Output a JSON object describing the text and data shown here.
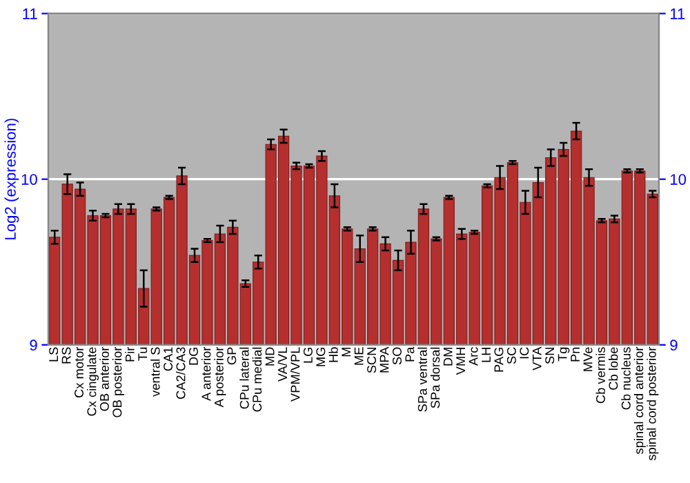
{
  "chart_data": {
    "type": "bar",
    "ylabel": "Log2 (expression)",
    "categories": [
      "LS",
      "RS",
      "Cx motor",
      "Cx cingulate",
      "OB anterior",
      "OB posterior",
      "Pir",
      "Tu",
      "ventral S",
      "CA1",
      "CA2/CA3",
      "DG",
      "A anterior",
      "A posterior",
      "GP",
      "CPu lateral",
      "CPu medial",
      "MD",
      "VA/VL",
      "VPM/VPL",
      "LG",
      "MG",
      "Hb",
      "M",
      "ME",
      "SCN",
      "MPA",
      "SO",
      "Pa",
      "SPa ventral",
      "SPa dorsal",
      "DM",
      "VMH",
      "Arc",
      "LH",
      "PAG",
      "SC",
      "IC",
      "VTA",
      "SN",
      "Tg",
      "Pn",
      "MVe",
      "Cb vermis",
      "Cb lobe",
      "Cb nucleus",
      "spinal cord anterior",
      "spinal cord posterior"
    ],
    "values": [
      9.65,
      9.97,
      9.94,
      9.78,
      9.78,
      9.82,
      9.82,
      9.34,
      9.82,
      9.89,
      10.02,
      9.54,
      9.63,
      9.67,
      9.71,
      9.37,
      9.5,
      10.21,
      10.26,
      10.08,
      10.08,
      10.14,
      9.9,
      9.7,
      9.58,
      9.7,
      9.61,
      9.51,
      9.62,
      9.82,
      9.64,
      9.89,
      9.67,
      9.68,
      9.96,
      10.01,
      10.1,
      9.86,
      9.98,
      10.13,
      10.18,
      10.29,
      10.01,
      9.75,
      9.76,
      10.05,
      10.05,
      9.91
    ],
    "errors": [
      0.04,
      0.06,
      0.04,
      0.03,
      0.01,
      0.03,
      0.03,
      0.11,
      0.01,
      0.01,
      0.05,
      0.04,
      0.01,
      0.05,
      0.04,
      0.02,
      0.04,
      0.03,
      0.04,
      0.02,
      0.01,
      0.03,
      0.07,
      0.01,
      0.08,
      0.01,
      0.04,
      0.06,
      0.07,
      0.03,
      0.01,
      0.01,
      0.03,
      0.01,
      0.01,
      0.07,
      0.01,
      0.07,
      0.09,
      0.05,
      0.04,
      0.05,
      0.05,
      0.01,
      0.02,
      0.01,
      0.01,
      0.02
    ],
    "color": "#b52f2f",
    "ylim": [
      9,
      11
    ],
    "yticks": [
      9,
      10,
      11
    ],
    "y2lim": [
      9,
      11
    ],
    "y2ticks": [
      9,
      10,
      11
    ],
    "grid": "y"
  }
}
